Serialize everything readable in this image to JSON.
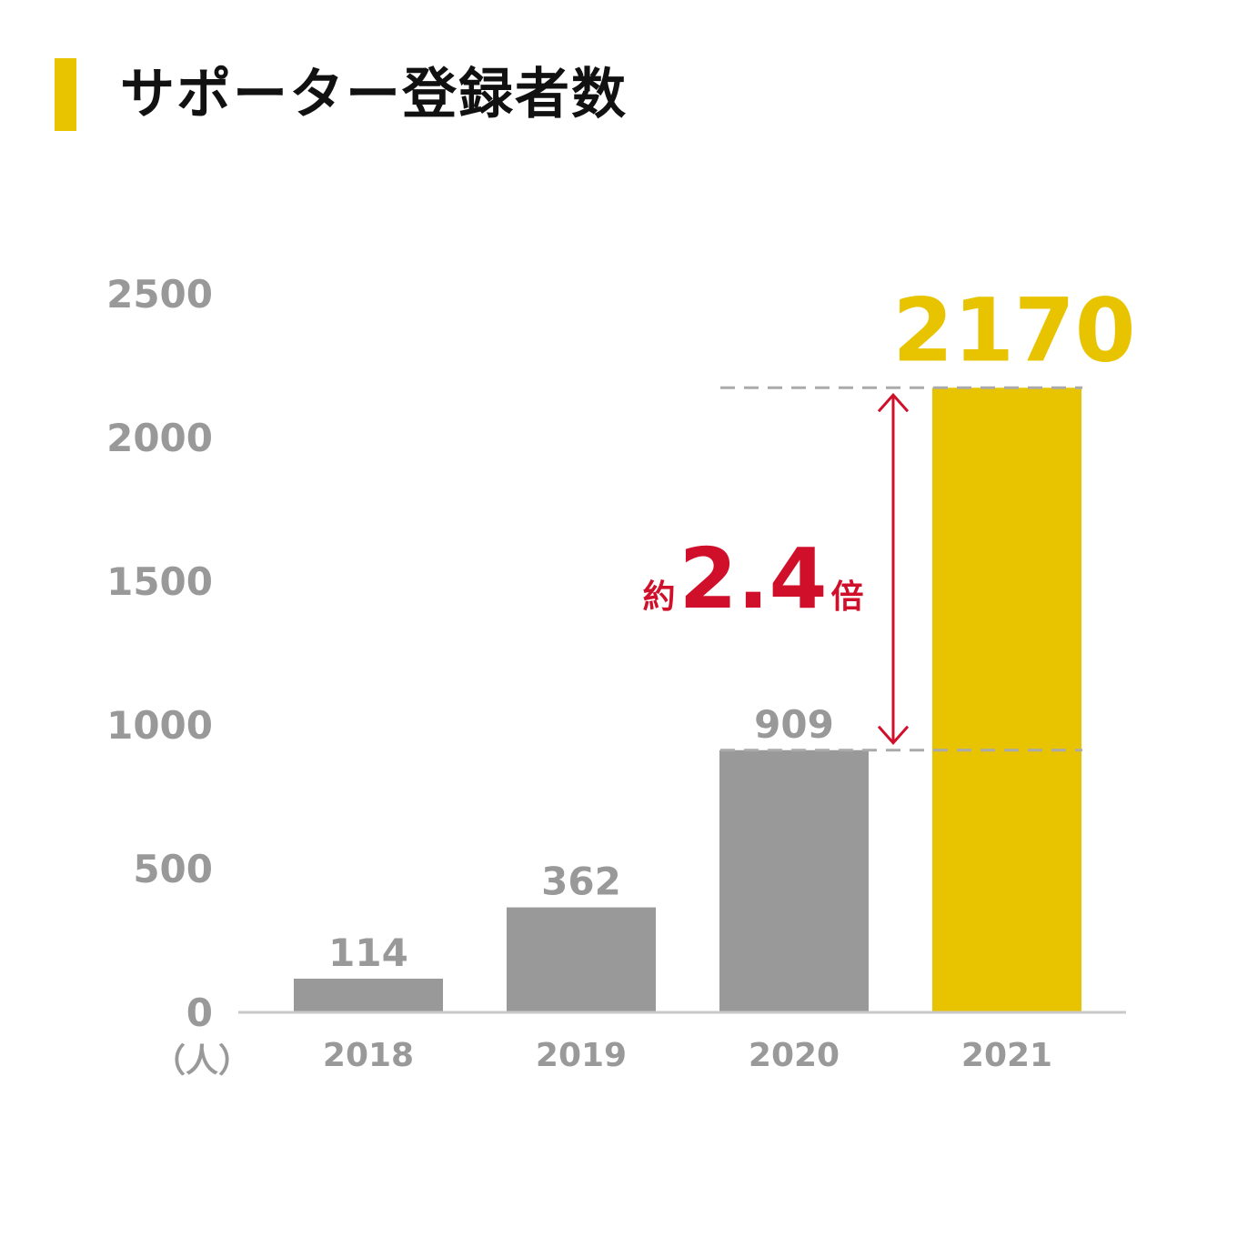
{
  "title": "サポーター登録者数",
  "colors": {
    "accent": "#E8C400",
    "bar": "#999999",
    "axis_text": "#999999",
    "baseline": "#C8C8C8",
    "guide": "#AAAAAA",
    "annotation": "#D0102A"
  },
  "chart_data": {
    "type": "bar",
    "categories": [
      "2018",
      "2019",
      "2020",
      "2021"
    ],
    "values": [
      114,
      362,
      909,
      2170
    ],
    "value_labels": [
      "114",
      "362",
      "909",
      "2170"
    ],
    "highlight_index": 3,
    "ylim": [
      0,
      2500
    ],
    "y_ticks": [
      0,
      500,
      1000,
      1500,
      2000,
      2500
    ],
    "y_unit": "（人）",
    "grid": false,
    "annotation": {
      "from_index": 2,
      "to_index": 3,
      "prefix": "約",
      "value": "2.4",
      "suffix": "倍"
    }
  }
}
